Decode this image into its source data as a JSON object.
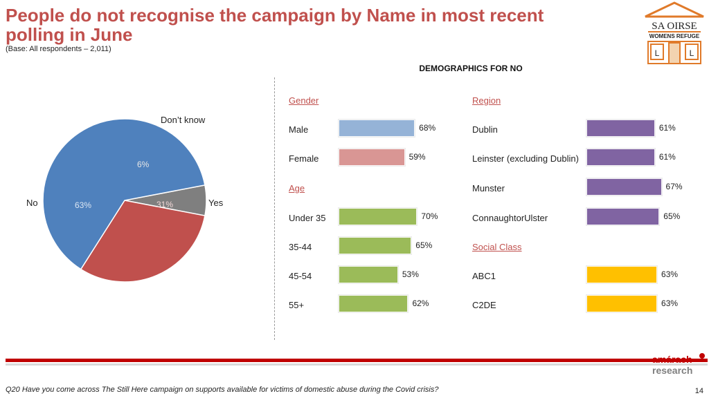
{
  "header": {
    "title": "People do not recognise the campaign by Name in most recent polling in June",
    "base": "(Base: All respondents – 2,011)"
  },
  "logo": {
    "line1": "SA OIRSE",
    "line2": "WOMENS REFUGE",
    "letters": [
      "L",
      "L"
    ]
  },
  "demographics_title": "DEMOGRAPHICS FOR NO",
  "footer": {
    "question": "Q20 Have you come across The Still Here campaign on supports available for victims of domestic abuse during the Covid crisis?",
    "page": "14",
    "brand_line1": "amárach",
    "brand_line2": "research"
  },
  "colors": {
    "title": "#c0504d",
    "pie_no": "#4f81bd",
    "pie_yes": "#c0504d",
    "pie_dk": "#7f7f7f",
    "male": "#95b3d7",
    "female": "#d99694",
    "age": "#9bbb59",
    "region": "#8064a2",
    "social": "#ffc000",
    "footer_red": "#c00000"
  },
  "chart_data": [
    {
      "type": "pie",
      "slices": [
        {
          "name": "No",
          "value": 63,
          "label": "63%"
        },
        {
          "name": "Yes",
          "value": 31,
          "label": "31%"
        },
        {
          "name": "Don’t know",
          "value": 6,
          "label": "6%"
        }
      ]
    },
    {
      "type": "bar",
      "title": "DEMOGRAPHICS FOR NO",
      "xlim": [
        0,
        100
      ],
      "groups": [
        {
          "name": "Gender",
          "items": [
            {
              "label": "Male",
              "value": 68,
              "text": "68%",
              "color": "male"
            },
            {
              "label": "Female",
              "value": 59,
              "text": "59%",
              "color": "female"
            }
          ]
        },
        {
          "name": "Age",
          "items": [
            {
              "label": "Under 35",
              "value": 70,
              "text": "70%",
              "color": "age"
            },
            {
              "label": "35-44",
              "value": 65,
              "text": "65%",
              "color": "age"
            },
            {
              "label": "45-54",
              "value": 53,
              "text": "53%",
              "color": "age"
            },
            {
              "label": "55+",
              "value": 62,
              "text": "62%",
              "color": "age"
            }
          ]
        },
        {
          "name": "Region",
          "items": [
            {
              "label": "Dublin",
              "value": 61,
              "text": "61%",
              "color": "region"
            },
            {
              "label": "Leinster (excluding Dublin)",
              "value": 61,
              "text": "61%",
              "color": "region"
            },
            {
              "label": "Munster",
              "value": 67,
              "text": "67%",
              "color": "region"
            },
            {
              "label": "ConnaughtorUlster",
              "value": 65,
              "text": "65%",
              "color": "region"
            }
          ]
        },
        {
          "name": "Social Class",
          "items": [
            {
              "label": "ABC1",
              "value": 63,
              "text": "63%",
              "color": "social"
            },
            {
              "label": "C2DE",
              "value": 63,
              "text": "63%",
              "color": "social"
            }
          ]
        }
      ]
    }
  ]
}
